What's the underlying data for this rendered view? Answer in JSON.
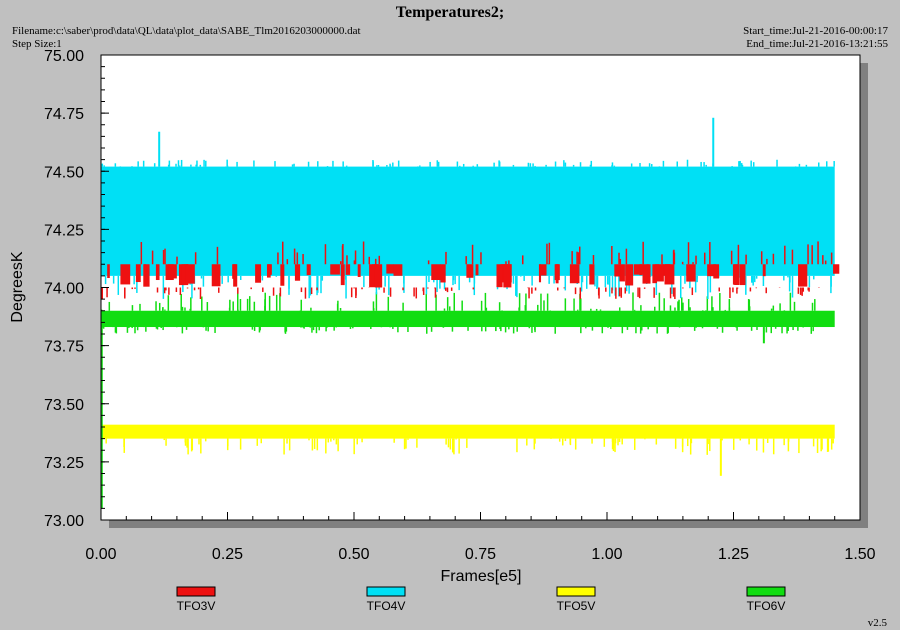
{
  "header": {
    "filename": "Filename:c:\\saber\\prod\\data\\QL\\data\\plot_data\\SABE_Tlm2016203000000.dat",
    "step_size": "Step Size:1",
    "start_time": "Start_time:Jul-21-2016-00:00:17",
    "end_time": "End_time:Jul-21-2016-13:21:55",
    "version": "v2.5"
  },
  "chart_data": {
    "type": "line",
    "title": "Temperatures2;",
    "xlabel": "Frames[e5]",
    "ylabel": "DegreesK",
    "xlim": [
      0.0,
      1.5
    ],
    "ylim": [
      73.0,
      75.0
    ],
    "x_ticks": [
      "0.00",
      "0.25",
      "0.50",
      "0.75",
      "1.00",
      "1.25",
      "1.50"
    ],
    "y_ticks": [
      "73.00",
      "73.25",
      "73.50",
      "73.75",
      "74.00",
      "74.25",
      "74.50",
      "74.75",
      "75.00"
    ],
    "grid": false,
    "legend_position": "bottom",
    "series": [
      {
        "name": "TFO3V",
        "color": "#ee1111",
        "x_range": [
          0.0,
          1.45
        ],
        "band": [
          74.0,
          74.1
        ],
        "noise_extent": [
          73.95,
          74.2
        ],
        "spikes": [
          {
            "x": 0.002,
            "y": 73.95
          }
        ]
      },
      {
        "name": "TFO4V",
        "color": "#00e0f5",
        "x_range": [
          0.0,
          1.45
        ],
        "band": [
          74.05,
          74.52
        ],
        "noise_extent": [
          73.95,
          74.55
        ],
        "spikes": [
          {
            "x": 0.115,
            "y": 74.67
          },
          {
            "x": 1.21,
            "y": 74.73
          }
        ]
      },
      {
        "name": "TFO5V",
        "color": "#ffff00",
        "x_range": [
          0.0,
          1.45
        ],
        "band": [
          73.35,
          73.41
        ],
        "noise_extent": [
          73.28,
          73.41
        ],
        "spikes": [
          {
            "x": 1.225,
            "y": 73.19
          }
        ]
      },
      {
        "name": "TFO6V",
        "color": "#11dd11",
        "x_range": [
          0.0,
          1.45
        ],
        "band": [
          73.83,
          73.9
        ],
        "noise_extent": [
          73.8,
          73.98
        ],
        "spikes": [
          {
            "x": 1.31,
            "y": 73.76
          }
        ]
      }
    ]
  }
}
